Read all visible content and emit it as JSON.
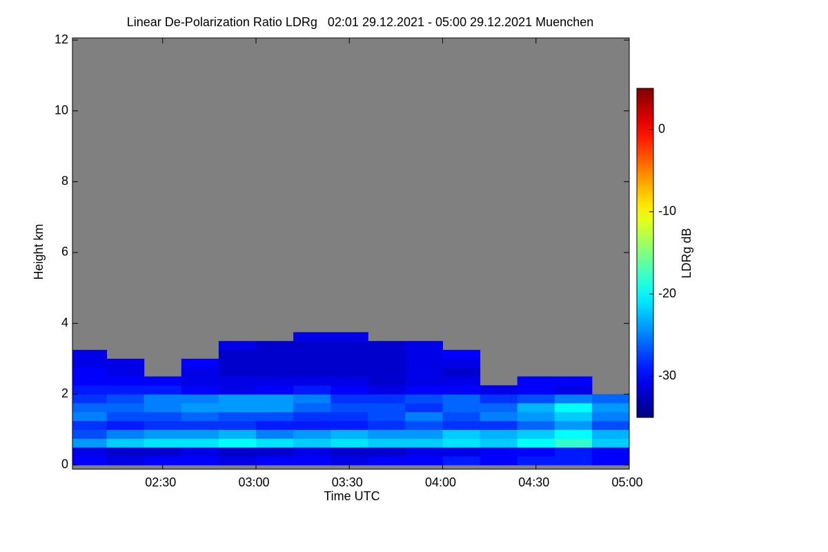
{
  "chart_data": {
    "type": "heatmap",
    "title": "Linear De-Polarization Ratio LDRg   02:01 29.12.2021 - 05:00 29.12.2021 Muenchen",
    "x_label": "Time UTC",
    "y_label": "Height km",
    "colorbar_label": "LDRg dB",
    "xlim": [
      2.0167,
      5.0
    ],
    "xticks": [
      {
        "value": 2.5,
        "label": "02:30"
      },
      {
        "value": 3,
        "label": "03:00"
      },
      {
        "value": 3.5,
        "label": "03:30"
      },
      {
        "value": 4,
        "label": "04:00"
      },
      {
        "value": 4.5,
        "label": "04:30"
      },
      {
        "value": 5,
        "label": "05:00"
      }
    ],
    "ylim": [
      -0.12,
      12.06
    ],
    "yticks": [
      0,
      2,
      4,
      6,
      8,
      10,
      12
    ],
    "clim": [
      -35,
      5
    ],
    "cticks": [
      0,
      -10,
      -20,
      -30
    ],
    "colormap": "jet",
    "nodata_color": "#808080",
    "x": [
      2.1,
      2.3,
      2.5,
      2.7,
      2.9,
      3.1,
      3.3,
      3.5,
      3.7,
      3.9,
      4.1,
      4.3,
      4.5,
      4.7,
      4.9
    ],
    "y": [
      0.125,
      0.375,
      0.625,
      0.875,
      1.125,
      1.375,
      1.625,
      1.875,
      2.125,
      2.375,
      2.625,
      2.875,
      3.125,
      3.375,
      3.625
    ],
    "z": [
      [
        -30,
        -31,
        -30,
        -30,
        -31,
        -30,
        -30,
        -31,
        -30,
        -30,
        -29,
        -30,
        -29,
        -29,
        -30
      ],
      [
        -31,
        -32,
        -32,
        -31,
        -32,
        -32,
        -31,
        -32,
        -32,
        -31,
        -31,
        -30,
        -30,
        -29,
        -30
      ],
      [
        -24,
        -22,
        -21,
        -21,
        -20,
        -21,
        -22,
        -21,
        -22,
        -22,
        -21,
        -22,
        -20,
        -18,
        -22
      ],
      [
        -27,
        -25,
        -24,
        -24,
        -23,
        -25,
        -24,
        -23,
        -24,
        -24,
        -22,
        -23,
        -22,
        -20,
        -23
      ],
      [
        -28,
        -29,
        -28,
        -28,
        -28,
        -29,
        -29,
        -29,
        -28,
        -27,
        -28,
        -28,
        -26,
        -24,
        -27
      ],
      [
        -25,
        -27,
        -27,
        -26,
        -27,
        -27,
        -28,
        -28,
        -27,
        -25,
        -27,
        -25,
        -24,
        -22,
        -25
      ],
      [
        -26,
        -26,
        -25,
        -24,
        -24,
        -24,
        -26,
        -27,
        -27,
        -28,
        -26,
        -26,
        -23,
        -20,
        -24
      ],
      [
        -28,
        -27,
        -25,
        -25,
        -24,
        -24,
        -25,
        -28,
        -28,
        -27,
        -26,
        -28,
        -27,
        -25,
        -26
      ],
      [
        -29,
        -29,
        -29,
        -30,
        -31,
        -30,
        -29,
        -30,
        -31,
        -30,
        -30,
        -31,
        -30,
        -31,
        null
      ],
      [
        -30,
        -30,
        -30,
        -31,
        -31,
        -31,
        -31,
        -31,
        -32,
        -31,
        -31,
        null,
        -30,
        -30,
        null
      ],
      [
        -30,
        -31,
        null,
        -31,
        -32,
        -32,
        -32,
        -32,
        -32,
        -31,
        -32,
        null,
        null,
        null,
        null
      ],
      [
        -31,
        -31,
        null,
        -30,
        -32,
        -32,
        -32,
        -32,
        -32,
        -31,
        -31,
        null,
        null,
        null,
        null
      ],
      [
        -31,
        null,
        null,
        null,
        -32,
        -32,
        -32,
        -32,
        -32,
        -31,
        -30,
        null,
        null,
        null,
        null
      ],
      [
        null,
        null,
        null,
        null,
        -31,
        -32,
        -32,
        -32,
        -32,
        -31,
        null,
        null,
        null,
        null,
        null
      ],
      [
        null,
        null,
        null,
        null,
        null,
        null,
        -31,
        -31,
        null,
        null,
        null,
        null,
        null,
        null,
        null
      ]
    ]
  }
}
